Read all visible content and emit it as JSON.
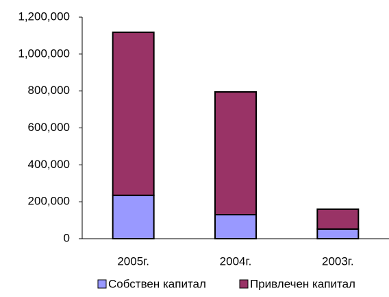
{
  "chart_data": {
    "type": "stacked_bar",
    "categories": [
      "2005г.",
      "2004г.",
      "2003г."
    ],
    "series": [
      {
        "name": "Собствен капитал",
        "color": "#9999ff",
        "values": [
          235000,
          130000,
          52000
        ]
      },
      {
        "name": "Привлечен капитал",
        "color": "#993366",
        "values": [
          883000,
          665000,
          108000
        ]
      }
    ],
    "ylim": [
      0,
      1200000
    ],
    "yticks": [
      0,
      {
        "value": 200000,
        "label": "200,000"
      },
      {
        "value": 400000,
        "label": "400,000"
      },
      {
        "value": 600000,
        "label": "600,000"
      },
      {
        "value": 800000,
        "label": "800,000"
      },
      {
        "value": 1000000,
        "label": "1,000,000"
      },
      {
        "value": 1200000,
        "label": "1,200,000"
      }
    ],
    "grid": false,
    "legend": "bottom"
  }
}
